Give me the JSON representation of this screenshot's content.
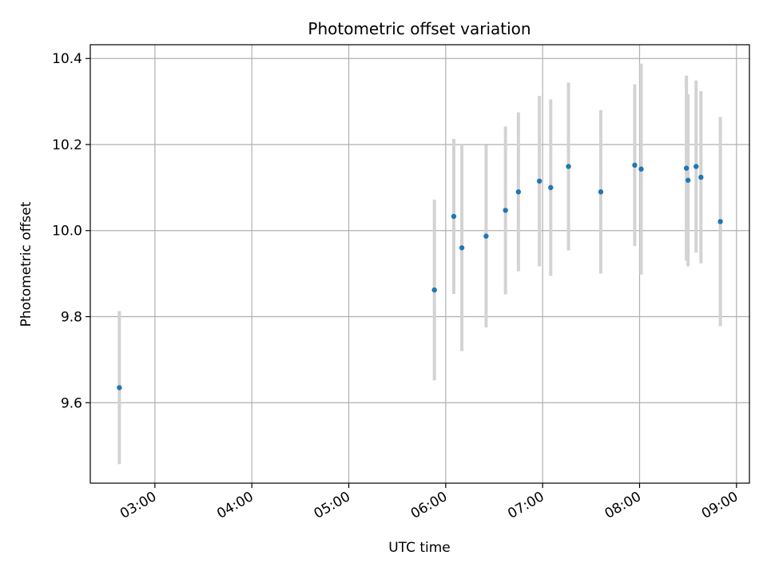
{
  "chart_data": {
    "type": "scatter",
    "title": "Photometric offset variation",
    "xlabel": "UTC time",
    "ylabel": "Photometric offset",
    "xlim": [
      "02:20",
      "09:08"
    ],
    "ylim": [
      9.413,
      10.432
    ],
    "x_ticks": [
      "03:00",
      "04:00",
      "05:00",
      "06:00",
      "07:00",
      "08:00",
      "09:00"
    ],
    "y_ticks": [
      "9.6",
      "9.8",
      "10.0",
      "10.2",
      "10.4"
    ],
    "grid": true,
    "marker_color": "#1f77b4",
    "errorbar_color": "#d3d3d3",
    "points": [
      {
        "time": "02:38",
        "y": 9.635,
        "err": 0.178
      },
      {
        "time": "05:53",
        "y": 9.862,
        "err": 0.21
      },
      {
        "time": "06:05",
        "y": 10.033,
        "err": 0.18
      },
      {
        "time": "06:10",
        "y": 9.96,
        "err": 0.24
      },
      {
        "time": "06:25",
        "y": 9.987,
        "err": 0.212
      },
      {
        "time": "06:37",
        "y": 10.047,
        "err": 0.195
      },
      {
        "time": "06:45",
        "y": 10.09,
        "err": 0.185
      },
      {
        "time": "06:58",
        "y": 10.115,
        "err": 0.198
      },
      {
        "time": "07:05",
        "y": 10.1,
        "err": 0.205
      },
      {
        "time": "07:16",
        "y": 10.149,
        "err": 0.195
      },
      {
        "time": "07:36",
        "y": 10.09,
        "err": 0.19
      },
      {
        "time": "07:57",
        "y": 10.152,
        "err": 0.188
      },
      {
        "time": "08:01",
        "y": 10.143,
        "err": 0.245
      },
      {
        "time": "08:29",
        "y": 10.145,
        "err": 0.215
      },
      {
        "time": "08:30",
        "y": 10.117,
        "err": 0.2
      },
      {
        "time": "08:35",
        "y": 10.149,
        "err": 0.2
      },
      {
        "time": "08:38",
        "y": 10.124,
        "err": 0.2
      },
      {
        "time": "08:50",
        "y": 10.021,
        "err": 0.243
      }
    ]
  }
}
